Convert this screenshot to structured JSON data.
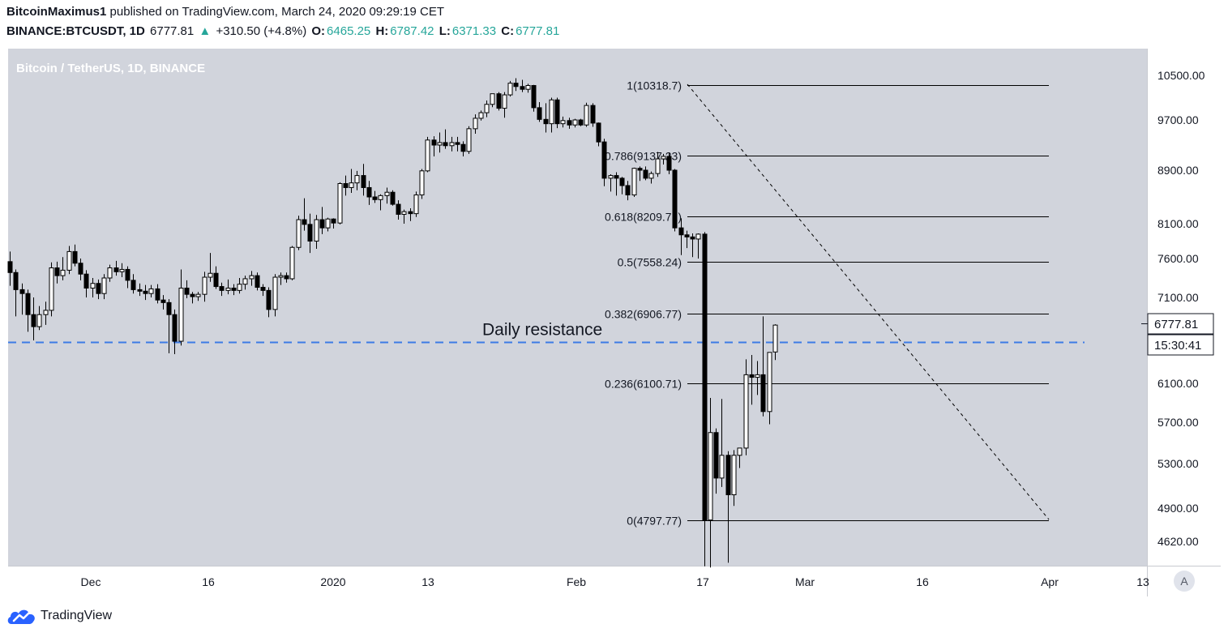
{
  "header": {
    "author": "BitcoinMaximus1",
    "published": "published on TradingView.com, March 24, 2020 09:29:19 CET",
    "symbol": "BINANCE:BTCUSDT, 1D",
    "last": "6777.81",
    "change": "+310.50 (+4.8%)",
    "o_label": "O:",
    "o_value": "6465.25",
    "h_label": "H:",
    "h_value": "6787.42",
    "l_label": "L:",
    "l_value": "6371.33",
    "c_label": "C:",
    "c_value": "6777.81"
  },
  "footer": {
    "logo_text": "TradingView"
  },
  "chart_data": {
    "type": "candlestick",
    "title": "Bitcoin / TetherUS, 1D, BINANCE",
    "x_labels": [
      "Dec",
      "16",
      "2020",
      "13",
      "Feb",
      "17",
      "Mar",
      "16",
      "Apr",
      "13"
    ],
    "y_ticks": [
      "10500.00",
      "9700.00",
      "8900.00",
      "8100.00",
      "7600.00",
      "7100.00",
      "6100.00",
      "5700.00",
      "5300.00",
      "4900.00",
      "4620.00"
    ],
    "y_axis_label_text": "A",
    "fib_levels": [
      {
        "label": "1(10318.7)",
        "value": 10318.7
      },
      {
        "label": "0.786(9137.23)",
        "value": 9137.23
      },
      {
        "label": "0.618(8209.71)",
        "value": 8209.71
      },
      {
        "label": "0.5(7558.24)",
        "value": 7558.24
      },
      {
        "label": "0.382(6906.77)",
        "value": 6906.77
      },
      {
        "label": "0.236(6100.71)",
        "value": 6100.71
      },
      {
        "label": "0(4797.77)",
        "value": 4797.77
      }
    ],
    "resistance": {
      "label": "Daily resistance",
      "value": 6580
    },
    "price_tag": "6777.81",
    "countdown_tag": "15:30:41",
    "candles": [
      [
        7560,
        7700,
        7250,
        7420
      ],
      [
        7420,
        7460,
        6880,
        7200
      ],
      [
        7200,
        7280,
        6900,
        7150
      ],
      [
        7150,
        7200,
        6700,
        6900
      ],
      [
        6900,
        7100,
        6600,
        6760
      ],
      [
        6760,
        7000,
        6720,
        6900
      ],
      [
        6900,
        7050,
        6780,
        6950
      ],
      [
        6950,
        7550,
        6880,
        7480
      ],
      [
        7480,
        7560,
        7280,
        7380
      ],
      [
        7380,
        7620,
        7320,
        7450
      ],
      [
        7450,
        7780,
        7400,
        7700
      ],
      [
        7700,
        7800,
        7500,
        7540
      ],
      [
        7540,
        7600,
        7320,
        7400
      ],
      [
        7400,
        7450,
        7100,
        7220
      ],
      [
        7220,
        7350,
        7100,
        7280
      ],
      [
        7280,
        7330,
        7080,
        7150
      ],
      [
        7150,
        7400,
        7080,
        7350
      ],
      [
        7350,
        7520,
        7300,
        7480
      ],
      [
        7480,
        7570,
        7380,
        7430
      ],
      [
        7430,
        7540,
        7360,
        7460
      ],
      [
        7460,
        7500,
        7220,
        7320
      ],
      [
        7320,
        7400,
        7150,
        7200
      ],
      [
        7200,
        7280,
        7120,
        7180
      ],
      [
        7180,
        7260,
        7070,
        7150
      ],
      [
        7150,
        7260,
        7100,
        7210
      ],
      [
        7210,
        7270,
        7030,
        7070
      ],
      [
        7070,
        7130,
        6960,
        7040
      ],
      [
        7040,
        7080,
        6450,
        6900
      ],
      [
        6900,
        6960,
        6440,
        6590
      ],
      [
        6590,
        7460,
        6540,
        7220
      ],
      [
        7220,
        7320,
        7090,
        7140
      ],
      [
        7140,
        7170,
        7030,
        7110
      ],
      [
        7110,
        7170,
        7060,
        7140
      ],
      [
        7140,
        7430,
        7050,
        7360
      ],
      [
        7360,
        7680,
        7300,
        7410
      ],
      [
        7410,
        7500,
        7210,
        7240
      ],
      [
        7240,
        7290,
        7120,
        7190
      ],
      [
        7190,
        7330,
        7140,
        7220
      ],
      [
        7220,
        7270,
        7130,
        7190
      ],
      [
        7190,
        7350,
        7150,
        7270
      ],
      [
        7270,
        7380,
        7200,
        7340
      ],
      [
        7340,
        7440,
        7250,
        7380
      ],
      [
        7380,
        7420,
        7190,
        7230
      ],
      [
        7230,
        7270,
        7120,
        7190
      ],
      [
        7190,
        7230,
        6870,
        6960
      ],
      [
        6960,
        7400,
        6880,
        7360
      ],
      [
        7360,
        7420,
        7260,
        7380
      ],
      [
        7380,
        7420,
        7290,
        7340
      ],
      [
        7340,
        7780,
        7320,
        7760
      ],
      [
        7760,
        8220,
        7720,
        8160
      ],
      [
        8160,
        8480,
        8000,
        8090
      ],
      [
        8090,
        8250,
        7680,
        7850
      ],
      [
        7850,
        8230,
        7740,
        8160
      ],
      [
        8160,
        8350,
        7950,
        8040
      ],
      [
        8040,
        8190,
        7990,
        8170
      ],
      [
        8170,
        8180,
        8030,
        8110
      ],
      [
        8110,
        8720,
        8090,
        8700
      ],
      [
        8700,
        8820,
        8520,
        8640
      ],
      [
        8640,
        8920,
        8560,
        8710
      ],
      [
        8710,
        8890,
        8600,
        8820
      ],
      [
        8820,
        9000,
        8520,
        8640
      ],
      [
        8640,
        8740,
        8380,
        8500
      ],
      [
        8500,
        8590,
        8410,
        8460
      ],
      [
        8460,
        8540,
        8300,
        8520
      ],
      [
        8520,
        8640,
        8400,
        8570
      ],
      [
        8570,
        8600,
        8370,
        8390
      ],
      [
        8390,
        8450,
        8160,
        8240
      ],
      [
        8240,
        8310,
        8100,
        8280
      ],
      [
        8280,
        8330,
        8140,
        8250
      ],
      [
        8250,
        8580,
        8200,
        8530
      ],
      [
        8530,
        8920,
        8470,
        8890
      ],
      [
        8890,
        9430,
        8870,
        9380
      ],
      [
        9380,
        9440,
        9120,
        9300
      ],
      [
        9300,
        9500,
        9180,
        9340
      ],
      [
        9340,
        9550,
        9240,
        9290
      ],
      [
        9290,
        9430,
        9200,
        9340
      ],
      [
        9340,
        9430,
        9200,
        9310
      ],
      [
        9310,
        9360,
        9120,
        9200
      ],
      [
        9200,
        9600,
        9160,
        9560
      ],
      [
        9560,
        9800,
        9480,
        9730
      ],
      [
        9730,
        9870,
        9690,
        9830
      ],
      [
        9830,
        10050,
        9750,
        9980
      ],
      [
        9980,
        10170,
        9930,
        10170
      ],
      [
        10170,
        10200,
        9870,
        9910
      ],
      [
        9910,
        10200,
        9740,
        10150
      ],
      [
        10150,
        10400,
        10120,
        10360
      ],
      [
        10360,
        10450,
        10220,
        10300
      ],
      [
        10300,
        10420,
        10200,
        10250
      ],
      [
        10250,
        10350,
        10190,
        10318
      ],
      [
        10318,
        10330,
        9850,
        9920
      ],
      [
        9920,
        10020,
        9670,
        9710
      ],
      [
        9710,
        10000,
        9500,
        9640
      ],
      [
        9640,
        10100,
        9500,
        10060
      ],
      [
        10060,
        10100,
        9570,
        9640
      ],
      [
        9640,
        9760,
        9580,
        9690
      ],
      [
        9690,
        9740,
        9560,
        9620
      ],
      [
        9620,
        9720,
        9580,
        9700
      ],
      [
        9700,
        9720,
        9600,
        9620
      ],
      [
        9620,
        10010,
        9590,
        9960
      ],
      [
        9960,
        10000,
        9590,
        9650
      ],
      [
        9650,
        9660,
        9280,
        9350
      ],
      [
        9350,
        9400,
        8660,
        8780
      ],
      [
        8780,
        8840,
        8580,
        8820
      ],
      [
        8820,
        8870,
        8520,
        8780
      ],
      [
        8780,
        8800,
        8540,
        8670
      ],
      [
        8670,
        8740,
        8450,
        8530
      ],
      [
        8530,
        8940,
        8500,
        8930
      ],
      [
        8930,
        8960,
        8740,
        8900
      ],
      [
        8900,
        8960,
        8750,
        8780
      ],
      [
        8780,
        8880,
        8700,
        8850
      ],
      [
        8850,
        9190,
        8800,
        9080
      ],
      [
        9080,
        9160,
        8990,
        9120
      ],
      [
        9120,
        9180,
        8840,
        8900
      ],
      [
        8900,
        8920,
        7990,
        8040
      ],
      [
        8040,
        8180,
        7650,
        7940
      ],
      [
        7940,
        8000,
        7750,
        7910
      ],
      [
        7910,
        7960,
        7620,
        7880
      ],
      [
        7880,
        7960,
        7600,
        7950
      ],
      [
        7950,
        7980,
        4410,
        4800
      ],
      [
        4800,
        5950,
        4400,
        5600
      ],
      [
        5600,
        5640,
        5030,
        5170
      ],
      [
        5170,
        5940,
        5090,
        5380
      ],
      [
        5380,
        5420,
        4440,
        5020
      ],
      [
        5020,
        5430,
        4920,
        5380
      ],
      [
        5380,
        5430,
        5260,
        5450
      ],
      [
        5450,
        6380,
        5380,
        6200
      ],
      [
        6200,
        6430,
        5880,
        6170
      ],
      [
        6170,
        6360,
        5980,
        6200
      ],
      [
        6200,
        6880,
        5760,
        5810
      ],
      [
        5810,
        6400,
        5680,
        6460
      ],
      [
        6465,
        6787,
        6371,
        6778
      ]
    ]
  }
}
